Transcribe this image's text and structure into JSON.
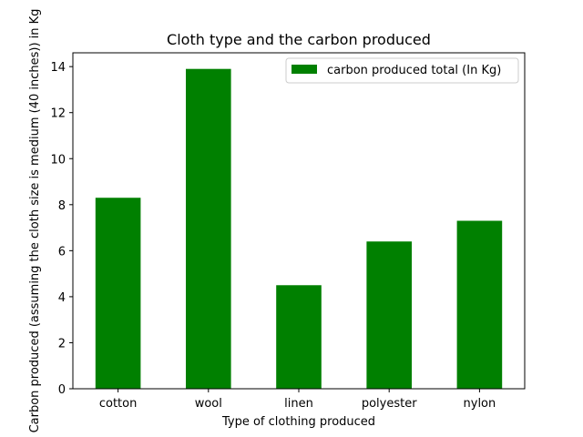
{
  "chart_data": {
    "type": "bar",
    "title": "Cloth type and the carbon produced",
    "xlabel": "Type of clothing produced",
    "ylabel": "Carbon produced (assuming the cloth size is medium (40 inches)) in Kg",
    "categories": [
      "cotton",
      "wool",
      "linen",
      "polyester",
      "nylon"
    ],
    "series": [
      {
        "name": "carbon produced total (In Kg)",
        "values": [
          8.3,
          13.9,
          4.5,
          6.4,
          7.3
        ]
      }
    ],
    "ylim": [
      0,
      14.6
    ],
    "yticks": [
      0,
      2,
      4,
      6,
      8,
      10,
      12,
      14
    ],
    "grid": false,
    "legend_position": "top-right",
    "bar_color": "#008000"
  }
}
